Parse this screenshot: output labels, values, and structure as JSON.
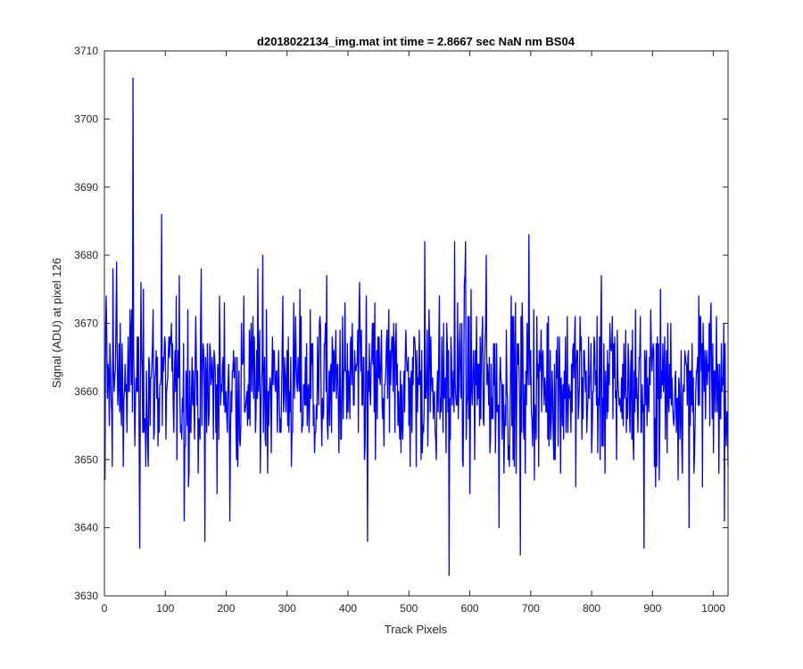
{
  "chart_data": {
    "type": "line",
    "title": "d2018022134_img.mat int time = 2.8667 sec  NaN nm BS04",
    "xlabel": "Track Pixels",
    "ylabel": "Signal (ADU) at pixel 126",
    "xlim": [
      0,
      1024
    ],
    "ylim": [
      3630,
      3710
    ],
    "xticks": [
      0,
      100,
      200,
      300,
      400,
      500,
      600,
      700,
      800,
      900,
      1000
    ],
    "yticks": [
      3630,
      3640,
      3650,
      3660,
      3670,
      3680,
      3690,
      3700,
      3710
    ],
    "grid": false,
    "series": [
      {
        "color": "#0000ff",
        "n_points": 1024,
        "x_start": 1,
        "mean": 3661,
        "noise_std": 6.2,
        "value_range": [
          3633,
          3706
        ],
        "notable_points": [
          {
            "x": 1,
            "y": 3647
          },
          {
            "x": 3,
            "y": 3674
          },
          {
            "x": 14,
            "y": 3678
          },
          {
            "x": 20,
            "y": 3679
          },
          {
            "x": 47,
            "y": 3706
          },
          {
            "x": 58,
            "y": 3637
          },
          {
            "x": 94,
            "y": 3686
          },
          {
            "x": 131,
            "y": 3641
          },
          {
            "x": 165,
            "y": 3638
          },
          {
            "x": 206,
            "y": 3641
          },
          {
            "x": 260,
            "y": 3680
          },
          {
            "x": 432,
            "y": 3638
          },
          {
            "x": 526,
            "y": 3682
          },
          {
            "x": 566,
            "y": 3633
          },
          {
            "x": 575,
            "y": 3682
          },
          {
            "x": 593,
            "y": 3682
          },
          {
            "x": 627,
            "y": 3680
          },
          {
            "x": 648,
            "y": 3640
          },
          {
            "x": 683,
            "y": 3636
          },
          {
            "x": 697,
            "y": 3683
          },
          {
            "x": 886,
            "y": 3637
          },
          {
            "x": 960,
            "y": 3640
          },
          {
            "x": 1024,
            "y": 3649
          }
        ]
      }
    ]
  }
}
